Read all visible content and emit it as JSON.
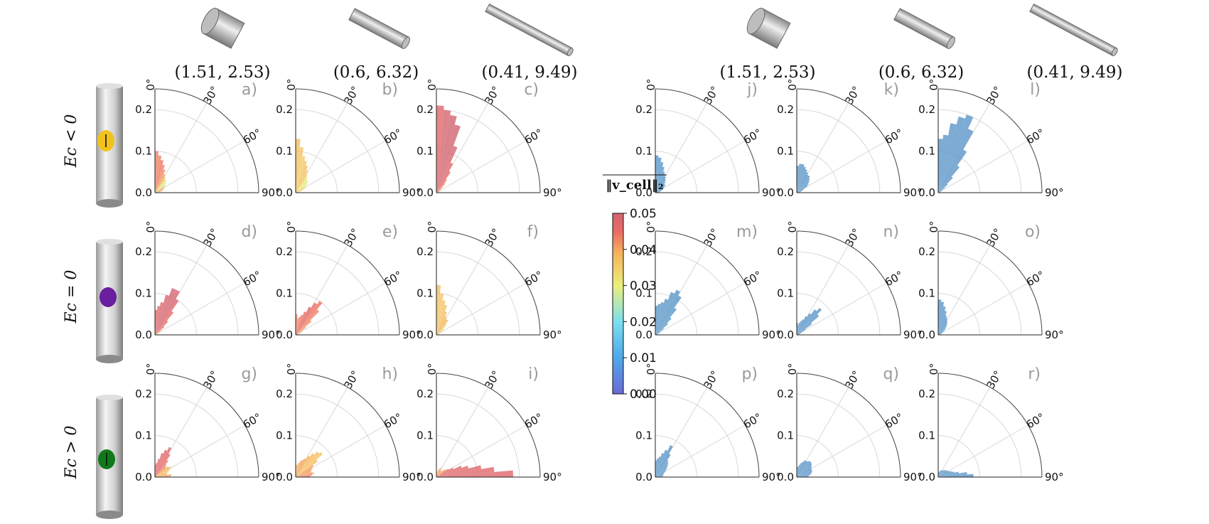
{
  "figure": {
    "row_labels": [
      "Ec < 0",
      "Ec = 0",
      "Ec > 0"
    ],
    "column_titles": [
      "(1.51, 2.53)",
      "(0.6, 6.32)",
      "(0.41, 9.49)",
      "(1.51, 2.53)",
      "(0.6, 6.32)",
      "(0.41, 9.49)"
    ],
    "colorbar": {
      "title": "‖v_cell‖₂",
      "ticks": [
        "0.00",
        "0.01",
        "0.02",
        "0.03",
        "0.04",
        "0.05"
      ],
      "range": [
        0.0,
        0.05
      ],
      "colors": [
        "#6a6ad8",
        "#4fa8e8",
        "#7cdff0",
        "#ecee7a",
        "#f6b25c",
        "#ea6a66",
        "#d26470"
      ]
    },
    "uniform_color": "#5b96c8",
    "cell_colors": {
      "Ec < 0": "#f2c21c",
      "Ec = 0": "#6a1ea0",
      "Ec > 0": "#0f7a1a"
    },
    "bar_alpha": 0.8
  },
  "chart_data": {
    "type": "polar-bar",
    "description": "Quarter-polar histograms of orientation angle (0°–90°), 18 bins of 5°, radius = frequency",
    "radial_ticks": [
      "0.0",
      "0.1",
      "0.2"
    ],
    "radial_lim": [
      0.0,
      0.25
    ],
    "angle_ticks": [
      "0°",
      "30°",
      "60°",
      "90°"
    ],
    "bin_width_deg": 5,
    "panels": [
      {
        "label": "a)",
        "row": 0,
        "col": 0,
        "colored": true,
        "values": [
          0.1,
          0.09,
          0.08,
          0.07,
          0.06,
          0.05,
          0.045,
          0.04,
          0.04,
          0.035,
          0.03,
          0.03,
          0.025,
          0.02,
          0.02,
          0.015,
          0.01,
          0.008
        ],
        "colors": [
          0.043,
          0.043,
          0.044,
          0.043,
          0.042,
          0.04,
          0.038,
          0.036,
          0.03,
          0.025,
          0.03,
          0.035,
          0.042,
          0.04,
          0.04,
          0.04,
          0.04,
          0.04
        ]
      },
      {
        "label": "b)",
        "row": 0,
        "col": 1,
        "colored": true,
        "values": [
          0.13,
          0.11,
          0.09,
          0.08,
          0.07,
          0.06,
          0.05,
          0.045,
          0.04,
          0.04,
          0.035,
          0.03,
          0.025,
          0.02,
          0.015,
          0.01,
          0.008,
          0.006
        ],
        "colors": [
          0.037,
          0.036,
          0.035,
          0.036,
          0.037,
          0.036,
          0.034,
          0.032,
          0.03,
          0.028,
          0.03,
          0.033,
          0.035,
          0.036,
          0.036,
          0.036,
          0.036,
          0.036
        ]
      },
      {
        "label": "c)",
        "row": 0,
        "col": 2,
        "colored": true,
        "values": [
          0.21,
          0.2,
          0.19,
          0.17,
          0.12,
          0.08,
          0.06,
          0.04,
          0.03,
          0.02,
          0.015,
          0.01,
          0.008,
          0.006,
          0.004,
          0.003,
          0.002,
          0.002
        ],
        "colors": [
          0.047,
          0.049,
          0.05,
          0.05,
          0.049,
          0.047,
          0.045,
          0.044,
          0.043,
          0.042,
          0.042,
          0.042,
          0.042,
          0.042,
          0.042,
          0.042,
          0.042,
          0.042
        ]
      },
      {
        "label": "d)",
        "row": 1,
        "col": 0,
        "colored": true,
        "values": [
          0.06,
          0.07,
          0.08,
          0.1,
          0.12,
          0.12,
          0.1,
          0.07,
          0.045,
          0.03,
          0.02,
          0.015,
          0.01,
          0.008,
          0.006,
          0.004,
          0.003,
          0.002
        ],
        "colors": [
          0.046,
          0.047,
          0.048,
          0.049,
          0.05,
          0.049,
          0.047,
          0.046,
          0.045,
          0.044,
          0.04,
          0.036,
          0.033,
          0.033,
          0.033,
          0.033,
          0.033,
          0.033
        ]
      },
      {
        "label": "e)",
        "row": 1,
        "col": 1,
        "colored": true,
        "values": [
          0.05,
          0.04,
          0.045,
          0.05,
          0.06,
          0.075,
          0.09,
          0.1,
          0.08,
          0.05,
          0.03,
          0.02,
          0.015,
          0.01,
          0.008,
          0.006,
          0.004,
          0.003
        ],
        "colors": [
          0.043,
          0.042,
          0.043,
          0.044,
          0.045,
          0.046,
          0.045,
          0.044,
          0.043,
          0.042,
          0.041,
          0.04,
          0.04,
          0.04,
          0.04,
          0.04,
          0.04,
          0.04
        ]
      },
      {
        "label": "f)",
        "row": 1,
        "col": 2,
        "colored": true,
        "values": [
          0.12,
          0.1,
          0.085,
          0.075,
          0.06,
          0.05,
          0.045,
          0.045,
          0.035,
          0.025,
          0.02,
          0.015,
          0.01,
          0.008,
          0.006,
          0.004,
          0.003,
          0.002
        ],
        "colors": [
          0.037,
          0.036,
          0.036,
          0.037,
          0.038,
          0.038,
          0.037,
          0.038,
          0.036,
          0.035,
          0.035,
          0.035,
          0.035,
          0.035,
          0.035,
          0.035,
          0.035,
          0.035
        ]
      },
      {
        "label": "g)",
        "row": 2,
        "col": 0,
        "colored": true,
        "values": [
          0.03,
          0.035,
          0.045,
          0.06,
          0.07,
          0.08,
          0.065,
          0.05,
          0.04,
          0.035,
          0.04,
          0.045,
          0.04,
          0.035,
          0.03,
          0.03,
          0.04,
          0.038
        ],
        "colors": [
          0.045,
          0.045,
          0.046,
          0.047,
          0.047,
          0.046,
          0.045,
          0.044,
          0.043,
          0.042,
          0.04,
          0.038,
          0.036,
          0.038,
          0.039,
          0.04,
          0.04,
          0.04
        ]
      },
      {
        "label": "h)",
        "row": 2,
        "col": 1,
        "colored": true,
        "values": [
          0.03,
          0.03,
          0.035,
          0.04,
          0.045,
          0.05,
          0.06,
          0.07,
          0.08,
          0.085,
          0.065,
          0.05,
          0.045,
          0.04,
          0.04,
          0.045,
          0.04,
          0.035
        ],
        "colors": [
          0.038,
          0.038,
          0.039,
          0.04,
          0.041,
          0.04,
          0.039,
          0.038,
          0.038,
          0.036,
          0.038,
          0.04,
          0.041,
          0.041,
          0.04,
          0.042,
          0.043,
          0.043
        ]
      },
      {
        "label": "i)",
        "row": 2,
        "col": 2,
        "colored": true,
        "values": [
          0.01,
          0.012,
          0.015,
          0.02,
          0.022,
          0.025,
          0.02,
          0.018,
          0.02,
          0.025,
          0.03,
          0.035,
          0.045,
          0.065,
          0.08,
          0.11,
          0.14,
          0.185
        ],
        "colors": [
          0.04,
          0.04,
          0.04,
          0.04,
          0.04,
          0.04,
          0.04,
          0.04,
          0.04,
          0.041,
          0.042,
          0.044,
          0.046,
          0.047,
          0.047,
          0.047,
          0.047,
          0.047
        ]
      },
      {
        "label": "j)",
        "row": 0,
        "col": 3,
        "colored": false,
        "values": [
          0.09,
          0.085,
          0.075,
          0.065,
          0.055,
          0.05,
          0.045,
          0.04,
          0.035,
          0.03,
          0.03,
          0.025,
          0.02,
          0.02,
          0.015,
          0.012,
          0.01,
          0.01
        ]
      },
      {
        "label": "k)",
        "row": 0,
        "col": 4,
        "colored": false,
        "values": [
          0.065,
          0.07,
          0.07,
          0.065,
          0.06,
          0.055,
          0.05,
          0.05,
          0.045,
          0.04,
          0.035,
          0.03,
          0.02,
          0.015,
          0.012,
          0.01,
          0.008,
          0.006
        ]
      },
      {
        "label": "l)",
        "row": 0,
        "col": 5,
        "colored": false,
        "values": [
          0.13,
          0.14,
          0.17,
          0.19,
          0.2,
          0.17,
          0.12,
          0.08,
          0.05,
          0.03,
          0.02,
          0.012,
          0.008,
          0.006,
          0.004,
          0.003,
          0.002,
          0.002
        ]
      },
      {
        "label": "m)",
        "row": 1,
        "col": 3,
        "colored": false,
        "values": [
          0.07,
          0.075,
          0.08,
          0.09,
          0.11,
          0.12,
          0.11,
          0.08,
          0.055,
          0.04,
          0.025,
          0.015,
          0.01,
          0.008,
          0.006,
          0.004,
          0.003,
          0.002
        ]
      },
      {
        "label": "n)",
        "row": 1,
        "col": 4,
        "colored": false,
        "values": [
          0.03,
          0.025,
          0.03,
          0.035,
          0.04,
          0.05,
          0.06,
          0.075,
          0.085,
          0.07,
          0.045,
          0.025,
          0.015,
          0.01,
          0.008,
          0.006,
          0.004,
          0.003
        ]
      },
      {
        "label": "o)",
        "row": 1,
        "col": 5,
        "colored": false,
        "values": [
          0.085,
          0.08,
          0.07,
          0.06,
          0.05,
          0.045,
          0.04,
          0.035,
          0.03,
          0.025,
          0.02,
          0.015,
          0.012,
          0.01,
          0.008,
          0.006,
          0.004,
          0.003
        ]
      },
      {
        "label": "p)",
        "row": 2,
        "col": 3,
        "colored": false,
        "values": [
          0.04,
          0.045,
          0.05,
          0.06,
          0.07,
          0.085,
          0.065,
          0.05,
          0.045,
          0.04,
          0.035,
          0.03,
          0.025,
          0.022,
          0.02,
          0.02,
          0.018,
          0.015
        ]
      },
      {
        "label": "q)",
        "row": 2,
        "col": 4,
        "colored": false,
        "values": [
          0.025,
          0.025,
          0.03,
          0.035,
          0.04,
          0.045,
          0.045,
          0.048,
          0.05,
          0.048,
          0.045,
          0.042,
          0.04,
          0.04,
          0.038,
          0.035,
          0.03,
          0.028
        ]
      },
      {
        "label": "r)",
        "row": 2,
        "col": 5,
        "colored": false,
        "values": [
          0.01,
          0.012,
          0.014,
          0.015,
          0.018,
          0.018,
          0.02,
          0.02,
          0.022,
          0.025,
          0.025,
          0.028,
          0.03,
          0.035,
          0.04,
          0.05,
          0.07,
          0.085
        ]
      }
    ]
  }
}
